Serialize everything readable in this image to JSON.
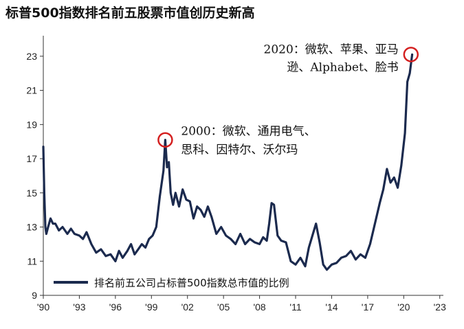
{
  "chart_data": {
    "type": "line",
    "title": "标普500指数排名前五股票市值创历史新高",
    "xlabel": "",
    "ylabel": "",
    "xlim": [
      1990,
      2023.3
    ],
    "ylim": [
      9,
      24.2
    ],
    "x_ticks": [
      {
        "value": 1990,
        "label": "'90"
      },
      {
        "value": 1993,
        "label": "'93"
      },
      {
        "value": 1996,
        "label": "'96"
      },
      {
        "value": 1999,
        "label": "'99"
      },
      {
        "value": 2002,
        "label": "'02"
      },
      {
        "value": 2005,
        "label": "'05"
      },
      {
        "value": 2008,
        "label": "'08"
      },
      {
        "value": 2011,
        "label": "'11"
      },
      {
        "value": 2014,
        "label": "'14"
      },
      {
        "value": 2017,
        "label": "'17"
      },
      {
        "value": 2020,
        "label": "'20"
      },
      {
        "value": 2023,
        "label": "'23"
      }
    ],
    "y_ticks": [
      {
        "value": 9,
        "label": "9"
      },
      {
        "value": 11,
        "label": "11"
      },
      {
        "value": 13,
        "label": "13"
      },
      {
        "value": 15,
        "label": "15"
      },
      {
        "value": 17,
        "label": "17"
      },
      {
        "value": 19,
        "label": "19"
      },
      {
        "value": 21,
        "label": "21"
      },
      {
        "value": 23,
        "label": "23"
      }
    ],
    "grid": false,
    "legend_position": "bottom-left",
    "series": [
      {
        "name": "排名前五公司占标普500指数总市值的比例",
        "color": "#1b2a4e",
        "x": [
          1990.0,
          1990.08,
          1990.17,
          1990.25,
          1990.4,
          1990.6,
          1990.8,
          1991.0,
          1991.3,
          1991.6,
          1992.0,
          1992.3,
          1992.6,
          1993.0,
          1993.3,
          1993.6,
          1994.0,
          1994.4,
          1994.8,
          1995.2,
          1995.6,
          1996.0,
          1996.3,
          1996.6,
          1997.0,
          1997.3,
          1997.6,
          1997.9,
          1998.2,
          1998.5,
          1998.8,
          1999.1,
          1999.4,
          1999.7,
          2000.0,
          2000.15,
          2000.3,
          2000.45,
          2000.6,
          2000.8,
          2001.0,
          2001.3,
          2001.6,
          2001.9,
          2002.2,
          2002.5,
          2002.8,
          2003.1,
          2003.4,
          2003.7,
          2004.0,
          2004.4,
          2004.8,
          2005.2,
          2005.6,
          2006.0,
          2006.4,
          2006.8,
          2007.2,
          2007.6,
          2008.0,
          2008.3,
          2008.6,
          2008.8,
          2009.0,
          2009.2,
          2009.5,
          2009.8,
          2010.2,
          2010.6,
          2011.0,
          2011.4,
          2011.8,
          2012.1,
          2012.4,
          2012.7,
          2013.0,
          2013.3,
          2013.6,
          2014.0,
          2014.4,
          2014.8,
          2015.2,
          2015.6,
          2016.0,
          2016.4,
          2016.8,
          2017.2,
          2017.6,
          2018.0,
          2018.3,
          2018.6,
          2018.9,
          2019.2,
          2019.5,
          2019.8,
          2020.1,
          2020.3,
          2020.5,
          2020.7
        ],
        "values": [
          17.7,
          15.0,
          13.0,
          12.6,
          13.0,
          13.5,
          13.2,
          13.2,
          12.8,
          13.0,
          12.6,
          12.9,
          12.6,
          12.5,
          12.3,
          12.7,
          12.0,
          11.5,
          11.7,
          11.3,
          11.4,
          11.0,
          11.6,
          11.2,
          11.6,
          12.0,
          11.4,
          11.7,
          12.0,
          11.8,
          12.3,
          12.5,
          13.0,
          14.8,
          16.3,
          18.1,
          16.5,
          16.8,
          15.0,
          14.3,
          15.0,
          14.2,
          15.2,
          14.6,
          14.5,
          13.5,
          14.2,
          14.0,
          13.6,
          14.2,
          13.6,
          12.6,
          13.0,
          12.5,
          12.3,
          12.0,
          12.6,
          12.0,
          12.3,
          12.1,
          12.0,
          12.4,
          12.2,
          13.2,
          14.4,
          14.3,
          12.5,
          12.2,
          12.1,
          11.0,
          10.8,
          11.2,
          10.7,
          11.8,
          12.5,
          13.2,
          12.1,
          10.8,
          10.5,
          10.8,
          10.9,
          11.2,
          11.3,
          11.6,
          11.1,
          11.4,
          11.2,
          12.0,
          13.2,
          14.4,
          15.2,
          16.4,
          15.6,
          15.9,
          15.3,
          16.6,
          18.5,
          21.5,
          22.0,
          23.1
        ]
      }
    ],
    "annotations": [
      {
        "lines": [
          "2020：微软、苹果、亚马",
          "逊、Alphabet、脸书"
        ],
        "anchor_x": 2020.6,
        "anchor_y": 23.1
      },
      {
        "lines": [
          "2000：微软、通用电气、",
          "思科、因特尔、沃尔玛"
        ],
        "anchor_x": 2000.15,
        "anchor_y": 18.1
      }
    ]
  }
}
